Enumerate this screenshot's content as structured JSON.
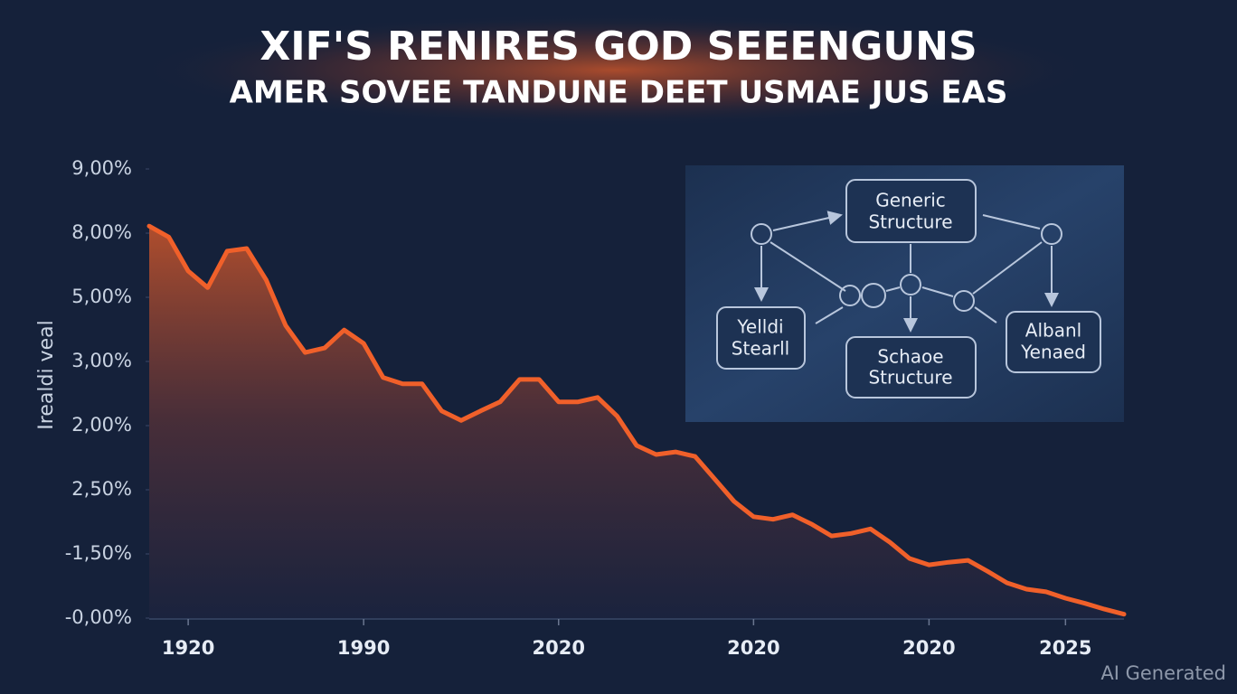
{
  "chart_data": {
    "type": "area",
    "title": "XIF'S RENIRES GOD SEEENGUNS",
    "subtitle": "AMER SOVEE TANDUNE DEET USMAE JUS EAS",
    "y_label": "Irealdi veal",
    "color": "#f0602a",
    "categories": [
      null,
      null,
      "1920",
      null,
      null,
      null,
      null,
      null,
      null,
      null,
      null,
      "1990",
      null,
      null,
      null,
      null,
      null,
      null,
      null,
      null,
      null,
      "2020",
      null,
      null,
      null,
      null,
      null,
      null,
      null,
      null,
      null,
      "2020",
      null,
      null,
      null,
      null,
      null,
      null,
      null,
      null,
      "2020",
      null,
      null,
      null,
      null,
      null,
      null,
      "2025",
      null,
      null,
      null
    ],
    "values": [
      6.11,
      5.94,
      5.41,
      5.15,
      5.72,
      5.76,
      5.27,
      4.56,
      4.14,
      4.21,
      4.49,
      4.28,
      3.75,
      3.65,
      3.65,
      3.23,
      3.08,
      3.23,
      3.37,
      3.72,
      3.72,
      3.37,
      3.37,
      3.44,
      3.15,
      2.69,
      2.55,
      2.59,
      2.52,
      2.17,
      1.82,
      1.58,
      1.54,
      1.61,
      1.46,
      1.28,
      1.32,
      1.39,
      1.18,
      0.93,
      0.83,
      0.87,
      0.9,
      0.73,
      0.55,
      0.45,
      0.41,
      0.31,
      0.23,
      0.14,
      0.06
    ],
    "ylim": [
      0,
      7
    ],
    "yticks": [
      {
        "value": 0,
        "label": "-0,00%"
      },
      {
        "value": 1,
        "label": "-1,50%"
      },
      {
        "value": 2,
        "label": "2,50%"
      },
      {
        "value": 3,
        "label": "2,00%"
      },
      {
        "value": 4,
        "label": "3,00%"
      },
      {
        "value": 5,
        "label": "5,00%"
      },
      {
        "value": 6,
        "label": "8,00%"
      },
      {
        "value": 7,
        "label": "9,00%"
      }
    ]
  },
  "diagram": {
    "nodes": [
      {
        "lines": [
          "Generic",
          "Structure"
        ]
      },
      {
        "lines": [
          "Yelldi",
          "Stearll"
        ]
      },
      {
        "lines": [
          "Schaoe",
          "Structure"
        ]
      },
      {
        "lines": [
          "Albanl",
          "Yenaed"
        ]
      }
    ]
  },
  "watermark": "AI Generated"
}
